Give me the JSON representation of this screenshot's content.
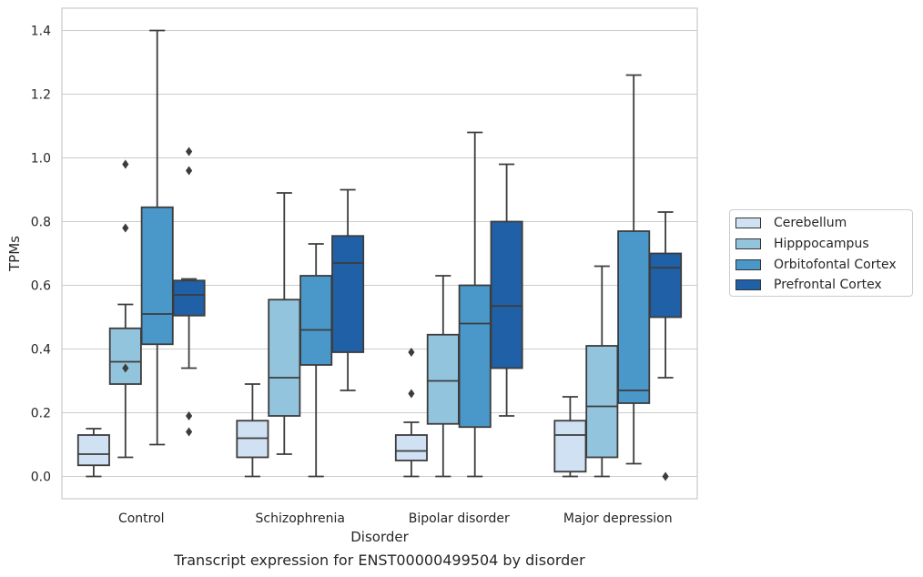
{
  "chart_data": {
    "type": "box",
    "title": "",
    "caption": "Transcript expression for ENST00000499504 by disorder",
    "xlabel": "Disorder",
    "ylabel": "TPMs",
    "ylim": [
      -0.07,
      1.47
    ],
    "yticks": [
      0.0,
      0.2,
      0.4,
      0.6,
      0.8,
      1.0,
      1.2,
      1.4
    ],
    "ytick_labels": [
      "0.0",
      "0.2",
      "0.4",
      "0.6",
      "0.8",
      "1.0",
      "1.2",
      "1.4"
    ],
    "categories": [
      "Control",
      "Schizophrenia",
      "Bipolar disorder",
      "Major depression"
    ],
    "grid": "horizontal",
    "legend_position": "right",
    "series": [
      {
        "name": "Cerebellum",
        "color": "#cfe1f2",
        "boxes": [
          {
            "whisker_low": 0.0,
            "q1": 0.035,
            "median": 0.07,
            "q3": 0.13,
            "whisker_high": 0.15,
            "outliers": []
          },
          {
            "whisker_low": 0.0,
            "q1": 0.06,
            "median": 0.12,
            "q3": 0.175,
            "whisker_high": 0.29,
            "outliers": []
          },
          {
            "whisker_low": 0.0,
            "q1": 0.05,
            "median": 0.08,
            "q3": 0.13,
            "whisker_high": 0.17,
            "outliers": [
              0.26,
              0.39
            ]
          },
          {
            "whisker_low": 0.0,
            "q1": 0.015,
            "median": 0.13,
            "q3": 0.175,
            "whisker_high": 0.25,
            "outliers": []
          }
        ]
      },
      {
        "name": "Hipppocampus",
        "color": "#93c4de",
        "boxes": [
          {
            "whisker_low": 0.06,
            "q1": 0.29,
            "median": 0.36,
            "q3": 0.465,
            "whisker_high": 0.54,
            "outliers": [
              0.34,
              0.78,
              0.98
            ]
          },
          {
            "whisker_low": 0.07,
            "q1": 0.19,
            "median": 0.31,
            "q3": 0.555,
            "whisker_high": 0.89,
            "outliers": []
          },
          {
            "whisker_low": 0.0,
            "q1": 0.165,
            "median": 0.3,
            "q3": 0.445,
            "whisker_high": 0.63,
            "outliers": []
          },
          {
            "whisker_low": 0.0,
            "q1": 0.06,
            "median": 0.22,
            "q3": 0.41,
            "whisker_high": 0.66,
            "outliers": []
          }
        ]
      },
      {
        "name": "Orbitofontal Cortex",
        "color": "#4a98c9",
        "boxes": [
          {
            "whisker_low": 0.1,
            "q1": 0.415,
            "median": 0.51,
            "q3": 0.845,
            "whisker_high": 1.4,
            "outliers": []
          },
          {
            "whisker_low": 0.0,
            "q1": 0.35,
            "median": 0.46,
            "q3": 0.63,
            "whisker_high": 0.73,
            "outliers": []
          },
          {
            "whisker_low": 0.0,
            "q1": 0.155,
            "median": 0.48,
            "q3": 0.6,
            "whisker_high": 1.08,
            "outliers": []
          },
          {
            "whisker_low": 0.04,
            "q1": 0.23,
            "median": 0.27,
            "q3": 0.77,
            "whisker_high": 1.26,
            "outliers": []
          }
        ]
      },
      {
        "name": "Prefrontal Cortex",
        "color": "#2060a7",
        "boxes": [
          {
            "whisker_low": 0.34,
            "q1": 0.505,
            "median": 0.57,
            "q3": 0.615,
            "whisker_high": 0.62,
            "outliers": [
              0.14,
              0.19,
              0.96,
              1.02
            ]
          },
          {
            "whisker_low": 0.27,
            "q1": 0.39,
            "median": 0.67,
            "q3": 0.755,
            "whisker_high": 0.9,
            "outliers": []
          },
          {
            "whisker_low": 0.19,
            "q1": 0.34,
            "median": 0.535,
            "q3": 0.8,
            "whisker_high": 0.98,
            "outliers": []
          },
          {
            "whisker_low": 0.31,
            "q1": 0.5,
            "median": 0.655,
            "q3": 0.7,
            "whisker_high": 0.83,
            "outliers": [
              0.0
            ]
          }
        ]
      }
    ]
  }
}
